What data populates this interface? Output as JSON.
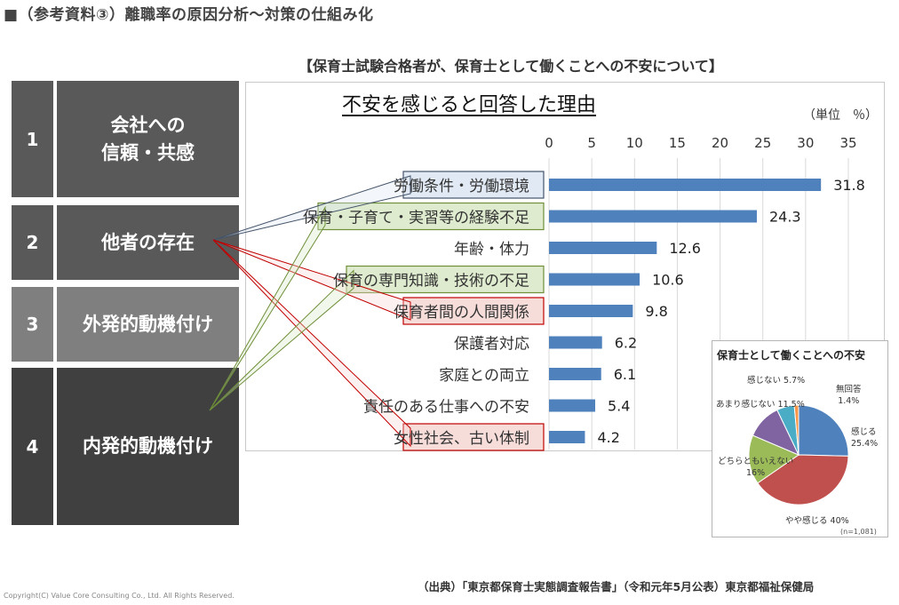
{
  "header": {
    "title": "■（参考資料③）離職率の原因分析～対策の仕組み化"
  },
  "categories": [
    {
      "number": "1",
      "label": "会社への\n信頼・共感",
      "color": "#595959"
    },
    {
      "number": "2",
      "label": "他者の存在",
      "color": "#595959"
    },
    {
      "number": "3",
      "label": "外発的動機付け",
      "color": "#7f7f7f"
    },
    {
      "number": "4",
      "label": "内発的動機付け",
      "color": "#404040"
    }
  ],
  "survey": {
    "heading": "【保育士試験合格者が、保育士として働くことへの不安について】"
  },
  "chart_data": [
    {
      "type": "bar",
      "orientation": "horizontal",
      "title": "不安を感じると回答した理由",
      "unit_label": "（単位　％）",
      "categories": [
        "労働条件・労働環境",
        "保育・子育て・実習等の経験不足",
        "年齢・体力",
        "保育の専門知識・技術の不足",
        "保育者間の人間関係",
        "保護者対応",
        "家庭との両立",
        "責任のある仕事への不安",
        "女性社会、古い体制"
      ],
      "values": [
        31.8,
        24.3,
        12.6,
        10.6,
        9.8,
        6.2,
        6.1,
        5.4,
        4.2
      ],
      "value_labels": [
        "31.8",
        "24.3",
        "12.6",
        "10.6",
        "9.8",
        "6.2",
        "6.1",
        "5.4",
        "4.2"
      ],
      "xlim": [
        0,
        35
      ],
      "ticks": [
        "0",
        "5",
        "10",
        "15",
        "20",
        "25",
        "30",
        "35"
      ],
      "tick_position": "top",
      "grid": true,
      "bar_color": "#4f81bd",
      "label_highlight": [
        "blue",
        "green",
        "none",
        "green",
        "red",
        "none",
        "none",
        "none",
        "red"
      ]
    },
    {
      "type": "pie",
      "title": "保育士として働くことへの不安",
      "note": "(n=1,081)",
      "slices": [
        {
          "name": "感じる",
          "value_label": "25.4%",
          "value": 25.4,
          "color": "#4f81bd"
        },
        {
          "name": "やや感じる",
          "value_label": "40%",
          "value": 40,
          "color": "#c0504d"
        },
        {
          "name": "どちらともいえない",
          "value_label": "16%",
          "value": 16,
          "color": "#9bbb59"
        },
        {
          "name": "あまり感じない",
          "value_label": "11.5%",
          "value": 11.5,
          "color": "#8064a2"
        },
        {
          "name": "感じない",
          "value_label": "5.7%",
          "value": 5.7,
          "color": "#4bacc6"
        },
        {
          "name": "無回答",
          "value_label": "1.4%",
          "value": 1.4,
          "color": "#f79646"
        }
      ]
    }
  ],
  "links": {
    "from_category_2": [
      "労働条件・労働環境",
      "保育者間の人間関係",
      "女性社会、古い体制"
    ],
    "from_category_4": [
      "保育・子育て・実習等の経験不足",
      "保育の専門知識・技術の不足"
    ]
  },
  "highlight_colors": {
    "blue": {
      "fill": "#dce6f2",
      "stroke": "#44546a"
    },
    "green": {
      "fill": "#d8e8c5",
      "stroke": "#6f8f3a"
    },
    "red": {
      "fill": "#f5d7d3",
      "stroke": "#c00000"
    }
  },
  "footer": {
    "source": "（出典）｢東京都保育士実態調査報告書｣（令和元年5月公表）東京都福祉保健局",
    "copyright": "Copyright(C) Value Core Consulting Co., Ltd.  All Rights Reserved."
  }
}
